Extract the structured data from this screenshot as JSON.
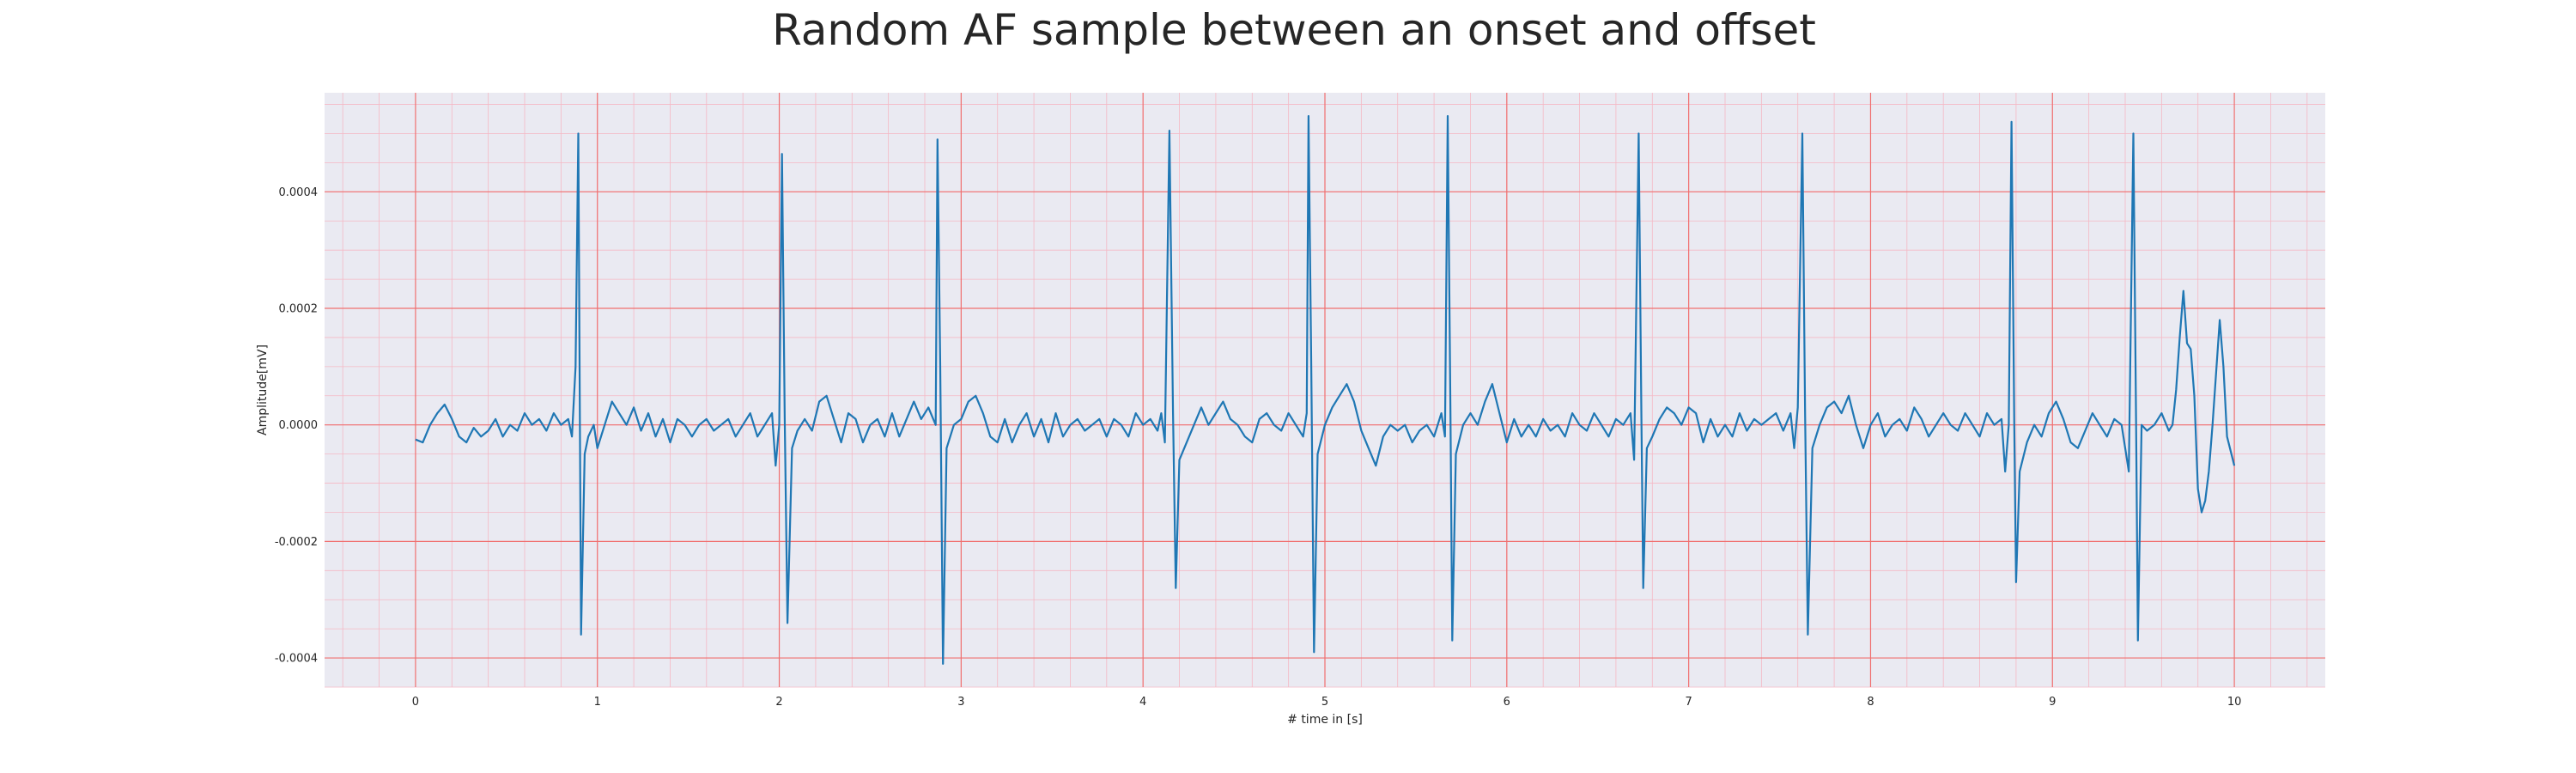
{
  "chart_data": {
    "type": "line",
    "title": "Random AF sample between an onset and offset",
    "xlabel": "# time in [s]",
    "ylabel": "Amplitude[mV]",
    "xlim": [
      -0.5,
      10.5
    ],
    "ylim": [
      -0.00045,
      0.00057
    ],
    "xticks": [
      "0",
      "1",
      "2",
      "3",
      "4",
      "5",
      "6",
      "7",
      "8",
      "9",
      "10"
    ],
    "yticks": [
      "-0.0004",
      "-0.0002",
      "0.0000",
      "0.0002",
      "0.0004"
    ],
    "grid": true,
    "minor_grid": true,
    "colors": {
      "background": "#eaeaf2",
      "major_grid": "#f07070",
      "minor_grid": "#f5b8c4",
      "line": "#1f77b4"
    },
    "series": [
      {
        "points": [
          [
            0.0,
            -2.5e-05
          ],
          [
            0.04,
            -3e-05
          ],
          [
            0.08,
            0.0
          ],
          [
            0.12,
            2e-05
          ],
          [
            0.16,
            3.5e-05
          ],
          [
            0.2,
            1e-05
          ],
          [
            0.24,
            -2e-05
          ],
          [
            0.28,
            -3e-05
          ],
          [
            0.32,
            -5e-06
          ],
          [
            0.36,
            -2e-05
          ],
          [
            0.4,
            -1e-05
          ],
          [
            0.44,
            1e-05
          ],
          [
            0.48,
            -2e-05
          ],
          [
            0.52,
            0.0
          ],
          [
            0.56,
            -1e-05
          ],
          [
            0.6,
            2e-05
          ],
          [
            0.64,
            0.0
          ],
          [
            0.68,
            1e-05
          ],
          [
            0.72,
            -1e-05
          ],
          [
            0.76,
            2e-05
          ],
          [
            0.8,
            0.0
          ],
          [
            0.84,
            1e-05
          ],
          [
            0.86,
            -2e-05
          ],
          [
            0.88,
            0.0001
          ],
          [
            0.895,
            0.0005
          ],
          [
            0.91,
            -0.00036
          ],
          [
            0.93,
            -5e-05
          ],
          [
            0.95,
            -2e-05
          ],
          [
            0.98,
            0.0
          ],
          [
            1.0,
            -4e-05
          ],
          [
            1.04,
            0.0
          ],
          [
            1.08,
            4e-05
          ],
          [
            1.12,
            2e-05
          ],
          [
            1.16,
            0.0
          ],
          [
            1.2,
            3e-05
          ],
          [
            1.24,
            -1e-05
          ],
          [
            1.28,
            2e-05
          ],
          [
            1.32,
            -2e-05
          ],
          [
            1.36,
            1e-05
          ],
          [
            1.4,
            -3e-05
          ],
          [
            1.44,
            1e-05
          ],
          [
            1.48,
            0.0
          ],
          [
            1.52,
            -2e-05
          ],
          [
            1.56,
            0.0
          ],
          [
            1.6,
            1e-05
          ],
          [
            1.64,
            -1e-05
          ],
          [
            1.68,
            0.0
          ],
          [
            1.72,
            1e-05
          ],
          [
            1.76,
            -2e-05
          ],
          [
            1.8,
            0.0
          ],
          [
            1.84,
            2e-05
          ],
          [
            1.88,
            -2e-05
          ],
          [
            1.92,
            0.0
          ],
          [
            1.96,
            2e-05
          ],
          [
            1.98,
            -7e-05
          ],
          [
            2.0,
            0.0
          ],
          [
            2.015,
            0.000465
          ],
          [
            2.03,
            1e-05
          ],
          [
            2.045,
            -0.00034
          ],
          [
            2.07,
            -4e-05
          ],
          [
            2.1,
            -1e-05
          ],
          [
            2.14,
            1e-05
          ],
          [
            2.18,
            -1e-05
          ],
          [
            2.22,
            4e-05
          ],
          [
            2.26,
            5e-05
          ],
          [
            2.3,
            1e-05
          ],
          [
            2.34,
            -3e-05
          ],
          [
            2.38,
            2e-05
          ],
          [
            2.42,
            1e-05
          ],
          [
            2.46,
            -3e-05
          ],
          [
            2.5,
            0.0
          ],
          [
            2.54,
            1e-05
          ],
          [
            2.58,
            -2e-05
          ],
          [
            2.62,
            2e-05
          ],
          [
            2.66,
            -2e-05
          ],
          [
            2.7,
            1e-05
          ],
          [
            2.74,
            4e-05
          ],
          [
            2.78,
            1e-05
          ],
          [
            2.82,
            3e-05
          ],
          [
            2.86,
            0.0
          ],
          [
            2.87,
            0.00049
          ],
          [
            2.885,
            0.0001
          ],
          [
            2.9,
            -0.00041
          ],
          [
            2.92,
            -4e-05
          ],
          [
            2.96,
            0.0
          ],
          [
            3.0,
            1e-05
          ],
          [
            3.04,
            4e-05
          ],
          [
            3.08,
            5e-05
          ],
          [
            3.12,
            2e-05
          ],
          [
            3.16,
            -2e-05
          ],
          [
            3.2,
            -3e-05
          ],
          [
            3.24,
            1e-05
          ],
          [
            3.28,
            -3e-05
          ],
          [
            3.32,
            0.0
          ],
          [
            3.36,
            2e-05
          ],
          [
            3.4,
            -2e-05
          ],
          [
            3.44,
            1e-05
          ],
          [
            3.48,
            -3e-05
          ],
          [
            3.52,
            2e-05
          ],
          [
            3.56,
            -2e-05
          ],
          [
            3.6,
            0.0
          ],
          [
            3.64,
            1e-05
          ],
          [
            3.68,
            -1e-05
          ],
          [
            3.72,
            0.0
          ],
          [
            3.76,
            1e-05
          ],
          [
            3.8,
            -2e-05
          ],
          [
            3.84,
            1e-05
          ],
          [
            3.88,
            0.0
          ],
          [
            3.92,
            -2e-05
          ],
          [
            3.96,
            2e-05
          ],
          [
            4.0,
            0.0
          ],
          [
            4.04,
            1e-05
          ],
          [
            4.08,
            -1e-05
          ],
          [
            4.1,
            2e-05
          ],
          [
            4.12,
            -3e-05
          ],
          [
            4.145,
            0.000505
          ],
          [
            4.165,
            2e-05
          ],
          [
            4.18,
            -0.00028
          ],
          [
            4.2,
            -6e-05
          ],
          [
            4.24,
            -3e-05
          ],
          [
            4.28,
            0.0
          ],
          [
            4.32,
            3e-05
          ],
          [
            4.36,
            0.0
          ],
          [
            4.4,
            2e-05
          ],
          [
            4.44,
            4e-05
          ],
          [
            4.48,
            1e-05
          ],
          [
            4.52,
            0.0
          ],
          [
            4.56,
            -2e-05
          ],
          [
            4.6,
            -3e-05
          ],
          [
            4.64,
            1e-05
          ],
          [
            4.68,
            2e-05
          ],
          [
            4.72,
            0.0
          ],
          [
            4.76,
            -1e-05
          ],
          [
            4.8,
            2e-05
          ],
          [
            4.84,
            0.0
          ],
          [
            4.88,
            -2e-05
          ],
          [
            4.9,
            2e-05
          ],
          [
            4.91,
            0.00053
          ],
          [
            4.925,
            0.0001
          ],
          [
            4.94,
            -0.00039
          ],
          [
            4.96,
            -5e-05
          ],
          [
            5.0,
            0.0
          ],
          [
            5.04,
            3e-05
          ],
          [
            5.08,
            5e-05
          ],
          [
            5.12,
            7e-05
          ],
          [
            5.16,
            4e-05
          ],
          [
            5.2,
            -1e-05
          ],
          [
            5.24,
            -4e-05
          ],
          [
            5.28,
            -7e-05
          ],
          [
            5.32,
            -2e-05
          ],
          [
            5.36,
            0.0
          ],
          [
            5.4,
            -1e-05
          ],
          [
            5.44,
            0.0
          ],
          [
            5.48,
            -3e-05
          ],
          [
            5.52,
            -1e-05
          ],
          [
            5.56,
            0.0
          ],
          [
            5.6,
            -2e-05
          ],
          [
            5.64,
            2e-05
          ],
          [
            5.66,
            -2e-05
          ],
          [
            5.675,
            0.00053
          ],
          [
            5.69,
            2e-05
          ],
          [
            5.7,
            -0.00037
          ],
          [
            5.72,
            -5e-05
          ],
          [
            5.76,
            0.0
          ],
          [
            5.8,
            2e-05
          ],
          [
            5.84,
            0.0
          ],
          [
            5.88,
            4e-05
          ],
          [
            5.92,
            7e-05
          ],
          [
            5.96,
            2e-05
          ],
          [
            6.0,
            -3e-05
          ],
          [
            6.04,
            1e-05
          ],
          [
            6.08,
            -2e-05
          ],
          [
            6.12,
            0.0
          ],
          [
            6.16,
            -2e-05
          ],
          [
            6.2,
            1e-05
          ],
          [
            6.24,
            -1e-05
          ],
          [
            6.28,
            0.0
          ],
          [
            6.32,
            -2e-05
          ],
          [
            6.36,
            2e-05
          ],
          [
            6.4,
            0.0
          ],
          [
            6.44,
            -1e-05
          ],
          [
            6.48,
            2e-05
          ],
          [
            6.52,
            0.0
          ],
          [
            6.56,
            -2e-05
          ],
          [
            6.6,
            1e-05
          ],
          [
            6.64,
            0.0
          ],
          [
            6.68,
            2e-05
          ],
          [
            6.7,
            -6e-05
          ],
          [
            6.725,
            0.0005
          ],
          [
            6.74,
            1e-05
          ],
          [
            6.75,
            -0.00028
          ],
          [
            6.77,
            -4e-05
          ],
          [
            6.8,
            -2e-05
          ],
          [
            6.84,
            1e-05
          ],
          [
            6.88,
            3e-05
          ],
          [
            6.92,
            2e-05
          ],
          [
            6.96,
            0.0
          ],
          [
            7.0,
            3e-05
          ],
          [
            7.04,
            2e-05
          ],
          [
            7.08,
            -3e-05
          ],
          [
            7.12,
            1e-05
          ],
          [
            7.16,
            -2e-05
          ],
          [
            7.2,
            0.0
          ],
          [
            7.24,
            -2e-05
          ],
          [
            7.28,
            2e-05
          ],
          [
            7.32,
            -1e-05
          ],
          [
            7.36,
            1e-05
          ],
          [
            7.4,
            0.0
          ],
          [
            7.44,
            1e-05
          ],
          [
            7.48,
            2e-05
          ],
          [
            7.52,
            -1e-05
          ],
          [
            7.56,
            2e-05
          ],
          [
            7.58,
            -4e-05
          ],
          [
            7.6,
            3e-05
          ],
          [
            7.625,
            0.0005
          ],
          [
            7.64,
            2e-05
          ],
          [
            7.655,
            -0.00036
          ],
          [
            7.68,
            -4e-05
          ],
          [
            7.72,
            0.0
          ],
          [
            7.76,
            3e-05
          ],
          [
            7.8,
            4e-05
          ],
          [
            7.84,
            2e-05
          ],
          [
            7.88,
            5e-05
          ],
          [
            7.92,
            0.0
          ],
          [
            7.96,
            -4e-05
          ],
          [
            8.0,
            0.0
          ],
          [
            8.04,
            2e-05
          ],
          [
            8.08,
            -2e-05
          ],
          [
            8.12,
            0.0
          ],
          [
            8.16,
            1e-05
          ],
          [
            8.2,
            -1e-05
          ],
          [
            8.24,
            3e-05
          ],
          [
            8.28,
            1e-05
          ],
          [
            8.32,
            -2e-05
          ],
          [
            8.36,
            0.0
          ],
          [
            8.4,
            2e-05
          ],
          [
            8.44,
            0.0
          ],
          [
            8.48,
            -1e-05
          ],
          [
            8.52,
            2e-05
          ],
          [
            8.56,
            0.0
          ],
          [
            8.6,
            -2e-05
          ],
          [
            8.64,
            2e-05
          ],
          [
            8.68,
            0.0
          ],
          [
            8.72,
            1e-05
          ],
          [
            8.74,
            -8e-05
          ],
          [
            8.76,
            0.0
          ],
          [
            8.775,
            0.00052
          ],
          [
            8.79,
            0.0
          ],
          [
            8.8,
            -0.00027
          ],
          [
            8.82,
            -8e-05
          ],
          [
            8.86,
            -3e-05
          ],
          [
            8.9,
            0.0
          ],
          [
            8.94,
            -2e-05
          ],
          [
            8.98,
            2e-05
          ],
          [
            9.02,
            4e-05
          ],
          [
            9.06,
            1e-05
          ],
          [
            9.1,
            -3e-05
          ],
          [
            9.14,
            -4e-05
          ],
          [
            9.18,
            -1e-05
          ],
          [
            9.22,
            2e-05
          ],
          [
            9.26,
            0.0
          ],
          [
            9.3,
            -2e-05
          ],
          [
            9.34,
            1e-05
          ],
          [
            9.38,
            0.0
          ],
          [
            9.42,
            -8e-05
          ],
          [
            9.445,
            0.0005
          ],
          [
            9.46,
            0.0
          ],
          [
            9.47,
            -0.00037
          ],
          [
            9.49,
            0.0
          ],
          [
            9.52,
            -1e-05
          ],
          [
            9.56,
            0.0
          ],
          [
            9.6,
            2e-05
          ],
          [
            9.64,
            -1e-05
          ],
          [
            9.66,
            0.0
          ],
          [
            9.68,
            6e-05
          ],
          [
            9.7,
            0.00015
          ],
          [
            9.72,
            0.00023
          ],
          [
            9.74,
            0.00014
          ],
          [
            9.76,
            0.00013
          ],
          [
            9.78,
            5e-05
          ],
          [
            9.8,
            -0.00011
          ],
          [
            9.82,
            -0.00015
          ],
          [
            9.84,
            -0.00013
          ],
          [
            9.86,
            -8e-05
          ],
          [
            9.88,
            0.0
          ],
          [
            9.9,
            9e-05
          ],
          [
            9.92,
            0.00018
          ],
          [
            9.94,
            0.0001
          ],
          [
            9.96,
            -2e-05
          ],
          [
            10.0,
            -7e-05
          ]
        ]
      }
    ]
  }
}
